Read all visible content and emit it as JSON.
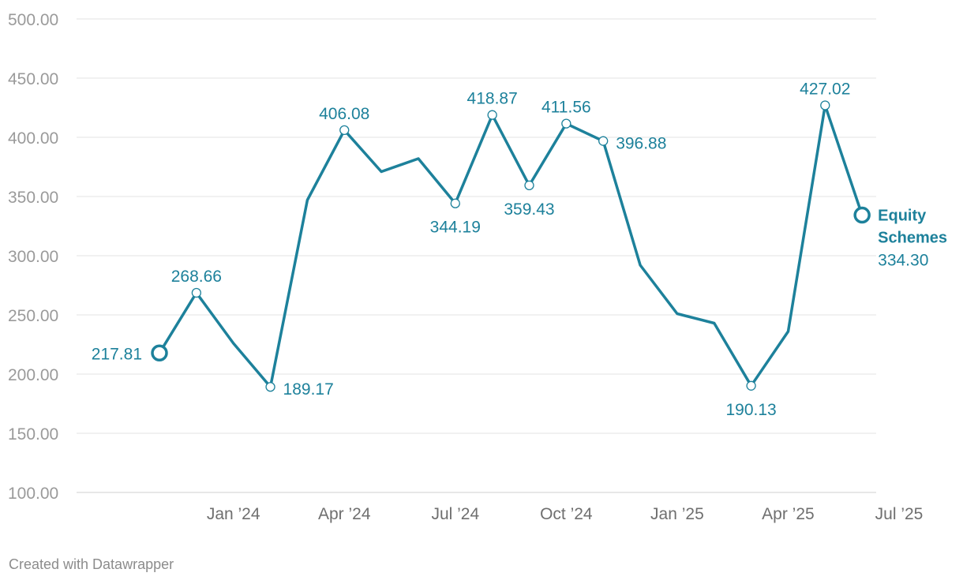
{
  "chart_data": {
    "type": "line",
    "title": "",
    "xlabel": "",
    "ylabel": "",
    "ylim": [
      100,
      500
    ],
    "yticks": [
      100,
      150,
      200,
      250,
      300,
      350,
      400,
      450,
      500
    ],
    "ytick_labels": [
      "100.00",
      "150.00",
      "200.00",
      "250.00",
      "300.00",
      "350.00",
      "400.00",
      "450.00",
      "500.00"
    ],
    "xticks": [
      {
        "index": 2,
        "label": "Jan ’24"
      },
      {
        "index": 5,
        "label": "Apr ’24"
      },
      {
        "index": 8,
        "label": "Jul ’24"
      },
      {
        "index": 11,
        "label": "Oct ’24"
      },
      {
        "index": 14,
        "label": "Jan ’25"
      },
      {
        "index": 17,
        "label": "Apr ’25"
      },
      {
        "index": 20,
        "label": "Jul ’25"
      }
    ],
    "series": [
      {
        "name": "Equity Schemes",
        "name_lines": [
          "Equity",
          "Schemes"
        ],
        "color": "#1d819b",
        "values": [
          217.81,
          268.66,
          226,
          189.17,
          347,
          406.08,
          371,
          382,
          344.19,
          418.87,
          359.43,
          411.56,
          396.88,
          292,
          251,
          243,
          190.13,
          236,
          427.02,
          334.3
        ],
        "last_value_label": "334.30"
      }
    ],
    "annotations": [
      {
        "index": 0,
        "label": "217.81",
        "pos": "left",
        "marker": "big"
      },
      {
        "index": 1,
        "label": "268.66",
        "pos": "above"
      },
      {
        "index": 3,
        "label": "189.17",
        "pos": "right"
      },
      {
        "index": 5,
        "label": "406.08",
        "pos": "above"
      },
      {
        "index": 8,
        "label": "344.19",
        "pos": "below"
      },
      {
        "index": 9,
        "label": "418.87",
        "pos": "above"
      },
      {
        "index": 10,
        "label": "359.43",
        "pos": "below"
      },
      {
        "index": 11,
        "label": "411.56",
        "pos": "above"
      },
      {
        "index": 12,
        "label": "396.88",
        "pos": "right"
      },
      {
        "index": 16,
        "label": "190.13",
        "pos": "below"
      },
      {
        "index": 18,
        "label": "427.02",
        "pos": "above"
      },
      {
        "index": 19,
        "label": "",
        "pos": "end",
        "marker": "big"
      }
    ]
  },
  "footer": {
    "credit": "Created with Datawrapper"
  }
}
